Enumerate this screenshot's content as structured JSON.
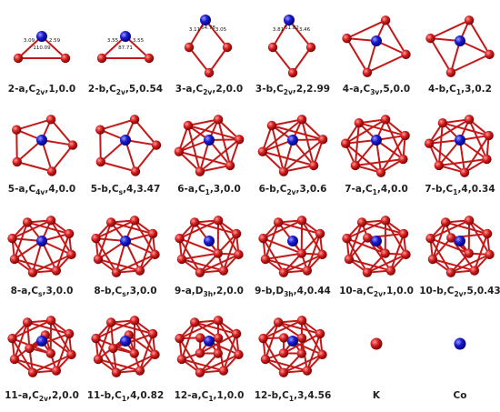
{
  "cells": [
    {
      "label": {
        "prefix": "2-a,C",
        "sub": "2v",
        "suffix": ",1,0.0"
      },
      "bond_labels": [
        "3.09",
        "110.09",
        "2.59"
      ]
    },
    {
      "label": {
        "prefix": "2-b,C",
        "sub": "2v",
        "suffix": ",5,0.54"
      },
      "bond_labels": [
        "3.55",
        "87.71",
        "3.55"
      ]
    },
    {
      "label": {
        "prefix": "3-a,C",
        "sub": "2v",
        "suffix": ",2,0.0"
      },
      "bond_labels": [
        "3.11",
        "64.78",
        "3.05"
      ]
    },
    {
      "label": {
        "prefix": "3-b,C",
        "sub": "2v",
        "suffix": ",2,2.99"
      },
      "bond_labels": [
        "3.81",
        "61.82",
        "3.46"
      ]
    },
    {
      "label": {
        "prefix": "4-a,C",
        "sub": "3v",
        "suffix": ",5,0.0"
      }
    },
    {
      "label": {
        "prefix": "4-b,C",
        "sub": "1",
        "suffix": ",3,0.2"
      }
    },
    {
      "label": {
        "prefix": "5-a,C",
        "sub": "4v",
        "suffix": ",4,0.0"
      }
    },
    {
      "label": {
        "prefix": "5-b,C",
        "sub": "s",
        "suffix": ",4,3.47"
      }
    },
    {
      "label": {
        "prefix": "6-a,C",
        "sub": "1",
        "suffix": ",3,0.0"
      }
    },
    {
      "label": {
        "prefix": "6-b,C",
        "sub": "2v",
        "suffix": ",3,0.6"
      }
    },
    {
      "label": {
        "prefix": "7-a,C",
        "sub": "1",
        "suffix": ",4,0.0"
      }
    },
    {
      "label": {
        "prefix": "7-b,C",
        "sub": "1",
        "suffix": ",4,0.34"
      }
    },
    {
      "label": {
        "prefix": "8-a,C",
        "sub": "s",
        "suffix": ",3,0.0"
      }
    },
    {
      "label": {
        "prefix": "8-b,C",
        "sub": "s",
        "suffix": ",3,0.0"
      }
    },
    {
      "label": {
        "prefix": "9-a,D",
        "sub": "3h",
        "suffix": ",2,0.0"
      }
    },
    {
      "label": {
        "prefix": "9-b,D",
        "sub": "3h",
        "suffix": ",4,0.44"
      }
    },
    {
      "label": {
        "prefix": "10-a,C",
        "sub": "2v",
        "suffix": ",1,0.0"
      }
    },
    {
      "label": {
        "prefix": "10-b,C",
        "sub": "2v",
        "suffix": ",5,0.43"
      }
    },
    {
      "label": {
        "prefix": "11-a,C",
        "sub": "2v",
        "suffix": ",2,0.0"
      }
    },
    {
      "label": {
        "prefix": "11-b,C",
        "sub": "1",
        "suffix": ",4,0.82"
      }
    },
    {
      "label": {
        "prefix": "12-a,C",
        "sub": "1",
        "suffix": ",1,0.0"
      }
    },
    {
      "label": {
        "prefix": "12-b,C",
        "sub": "1",
        "suffix": ",3,4.56"
      }
    }
  ],
  "legend": [
    {
      "label": "K"
    },
    {
      "label": "Co"
    }
  ]
}
